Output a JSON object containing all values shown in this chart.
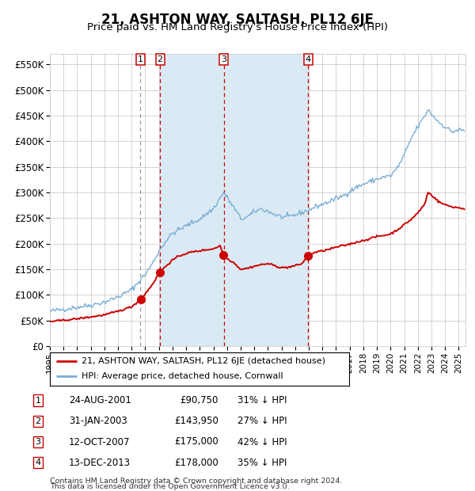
{
  "title": "21, ASHTON WAY, SALTASH, PL12 6JE",
  "subtitle": "Price paid vs. HM Land Registry's House Price Index (HPI)",
  "ylim": [
    0,
    570000
  ],
  "xlim_start": 1995.0,
  "xlim_end": 2025.5,
  "yticks": [
    0,
    50000,
    100000,
    150000,
    200000,
    250000,
    300000,
    350000,
    400000,
    450000,
    500000,
    550000
  ],
  "ytick_labels": [
    "£0",
    "£50K",
    "£100K",
    "£150K",
    "£200K",
    "£250K",
    "£300K",
    "£350K",
    "£400K",
    "£450K",
    "£500K",
    "£550K"
  ],
  "xtick_years": [
    1995,
    1996,
    1997,
    1998,
    1999,
    2000,
    2001,
    2002,
    2003,
    2004,
    2005,
    2006,
    2007,
    2008,
    2009,
    2010,
    2011,
    2012,
    2013,
    2014,
    2015,
    2016,
    2017,
    2018,
    2019,
    2020,
    2021,
    2022,
    2023,
    2024,
    2025
  ],
  "property_color": "#cc0000",
  "hpi_color": "#7aadd4",
  "grid_color": "#cccccc",
  "background_color": "#ffffff",
  "shade_color": "#daeaf5",
  "purchases": [
    {
      "num": 1,
      "date": "24-AUG-2001",
      "year": 2001.645,
      "price": 90750,
      "price_str": "£90,750",
      "label": "31% ↓ HPI"
    },
    {
      "num": 2,
      "date": "31-JAN-2003",
      "year": 2003.083,
      "price": 143950,
      "price_str": "£143,950",
      "label": "27% ↓ HPI"
    },
    {
      "num": 3,
      "date": "12-OCT-2007",
      "year": 2007.78,
      "price": 175000,
      "price_str": "£175,000",
      "label": "42% ↓ HPI"
    },
    {
      "num": 4,
      "date": "13-DEC-2013",
      "year": 2013.95,
      "price": 178000,
      "price_str": "£178,000",
      "label": "35% ↓ HPI"
    }
  ],
  "shade_regions": [
    {
      "start": 2003.083,
      "end": 2007.78
    },
    {
      "start": 2007.78,
      "end": 2013.95
    }
  ],
  "legend_property": "21, ASHTON WAY, SALTASH, PL12 6JE (detached house)",
  "legend_hpi": "HPI: Average price, detached house, Cornwall",
  "footer_line1": "Contains HM Land Registry data © Crown copyright and database right 2024.",
  "footer_line2": "This data is licensed under the Open Government Licence v3.0."
}
